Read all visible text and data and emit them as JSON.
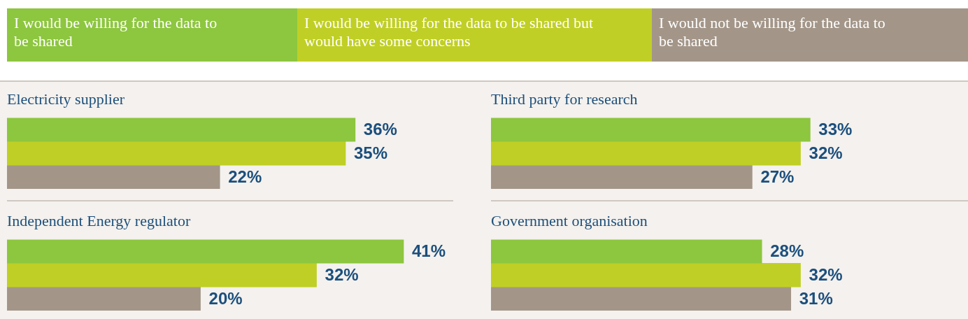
{
  "chart_data": [
    {
      "type": "bar",
      "orientation": "horizontal",
      "title": "Electricity supplier",
      "categories": [
        null
      ],
      "legend": "top",
      "series": [
        {
          "name": "I would be willing for the data to be shared",
          "color": "#8dc63f",
          "values": [
            36
          ],
          "value_labels": [
            "36%"
          ]
        },
        {
          "name": "I would be willing for the data to be shared but would have some concerns",
          "color": "#c0cf25",
          "values": [
            35
          ],
          "value_labels": [
            "35%"
          ]
        },
        {
          "name": "I would not be willing for the data to be shared",
          "color": "#a39689",
          "values": [
            22
          ],
          "value_labels": [
            "22%"
          ]
        }
      ]
    },
    {
      "type": "bar",
      "orientation": "horizontal",
      "title": "Third party for research",
      "categories": [
        null
      ],
      "series": [
        {
          "color": "#8dc63f",
          "values": [
            33
          ],
          "value_labels": [
            "33%"
          ]
        },
        {
          "color": "#c0cf25",
          "values": [
            32
          ],
          "value_labels": [
            "32%"
          ]
        },
        {
          "color": "#a39689",
          "values": [
            27
          ],
          "value_labels": [
            "27%"
          ]
        }
      ]
    },
    {
      "type": "bar",
      "orientation": "horizontal",
      "title": "Independent Energy regulator",
      "categories": [
        null
      ],
      "series": [
        {
          "color": "#8dc63f",
          "values": [
            41
          ],
          "value_labels": [
            "41%"
          ]
        },
        {
          "color": "#c0cf25",
          "values": [
            32
          ],
          "value_labels": [
            "32%"
          ]
        },
        {
          "color": "#a39689",
          "values": [
            20
          ],
          "value_labels": [
            "20%"
          ]
        }
      ]
    },
    {
      "type": "bar",
      "orientation": "horizontal",
      "title": "Government organisation",
      "categories": [
        null
      ],
      "series": [
        {
          "color": "#8dc63f",
          "values": [
            28
          ],
          "value_labels": [
            "28%"
          ]
        },
        {
          "color": "#c0cf25",
          "values": [
            32
          ],
          "value_labels": [
            "32%"
          ]
        },
        {
          "color": "#a39689",
          "values": [
            31
          ],
          "value_labels": [
            "31%"
          ]
        }
      ]
    }
  ]
}
